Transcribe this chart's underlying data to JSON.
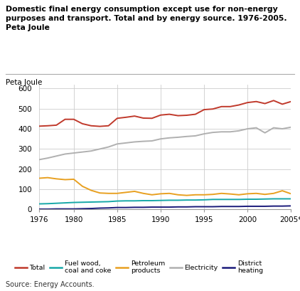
{
  "title_line1": "Domestic final energy consumption except use for non-energy",
  "title_line2": "purposes and transport. Total and by energy source. 1976-2005.",
  "title_line3": "Peta Joule",
  "ylabel": "Peta Joule",
  "source": "Source: Energy Accounts.",
  "years": [
    1976,
    1977,
    1978,
    1979,
    1980,
    1981,
    1982,
    1983,
    1984,
    1985,
    1986,
    1987,
    1988,
    1989,
    1990,
    1991,
    1992,
    1993,
    1994,
    1995,
    1996,
    1997,
    1998,
    1999,
    2000,
    2001,
    2002,
    2003,
    2004,
    2005
  ],
  "total": [
    413,
    415,
    418,
    447,
    447,
    425,
    415,
    412,
    415,
    452,
    457,
    463,
    453,
    452,
    468,
    472,
    465,
    467,
    472,
    495,
    498,
    510,
    510,
    518,
    530,
    535,
    525,
    540,
    522,
    535
  ],
  "fuel_wood": [
    28,
    29,
    31,
    33,
    35,
    36,
    37,
    38,
    39,
    42,
    43,
    43,
    44,
    44,
    45,
    46,
    46,
    47,
    47,
    48,
    50,
    50,
    50,
    50,
    51,
    51,
    52,
    53,
    53,
    53
  ],
  "petroleum": [
    155,
    158,
    152,
    148,
    150,
    115,
    95,
    82,
    80,
    80,
    85,
    90,
    80,
    73,
    78,
    80,
    73,
    70,
    73,
    73,
    75,
    80,
    77,
    73,
    78,
    80,
    75,
    80,
    93,
    78
  ],
  "electricity": [
    247,
    255,
    265,
    275,
    280,
    285,
    290,
    300,
    310,
    325,
    330,
    335,
    338,
    340,
    350,
    355,
    358,
    362,
    365,
    375,
    382,
    385,
    385,
    390,
    400,
    405,
    380,
    405,
    400,
    408
  ],
  "district_heating": [
    2,
    2,
    3,
    3,
    3,
    4,
    5,
    7,
    8,
    10,
    10,
    11,
    11,
    12,
    12,
    12,
    13,
    13,
    14,
    14,
    14,
    15,
    15,
    15,
    16,
    16,
    16,
    17,
    17,
    18
  ],
  "colors": {
    "total": "#c0392b",
    "fuel_wood": "#17a8a8",
    "petroleum": "#e8a020",
    "electricity": "#b0b0b0",
    "district_heating": "#1a1a7a"
  },
  "ylim": [
    0,
    620
  ],
  "yticks": [
    0,
    100,
    200,
    300,
    400,
    500,
    600
  ],
  "xtick_values": [
    1976,
    1980,
    1985,
    1990,
    1995,
    2000,
    2005
  ],
  "xtick_labels": [
    "1976",
    "1980",
    "1985",
    "1990",
    "1995",
    "2000",
    "2005*"
  ],
  "background_color": "#ffffff",
  "grid_color": "#cccccc",
  "line_width": 1.4
}
